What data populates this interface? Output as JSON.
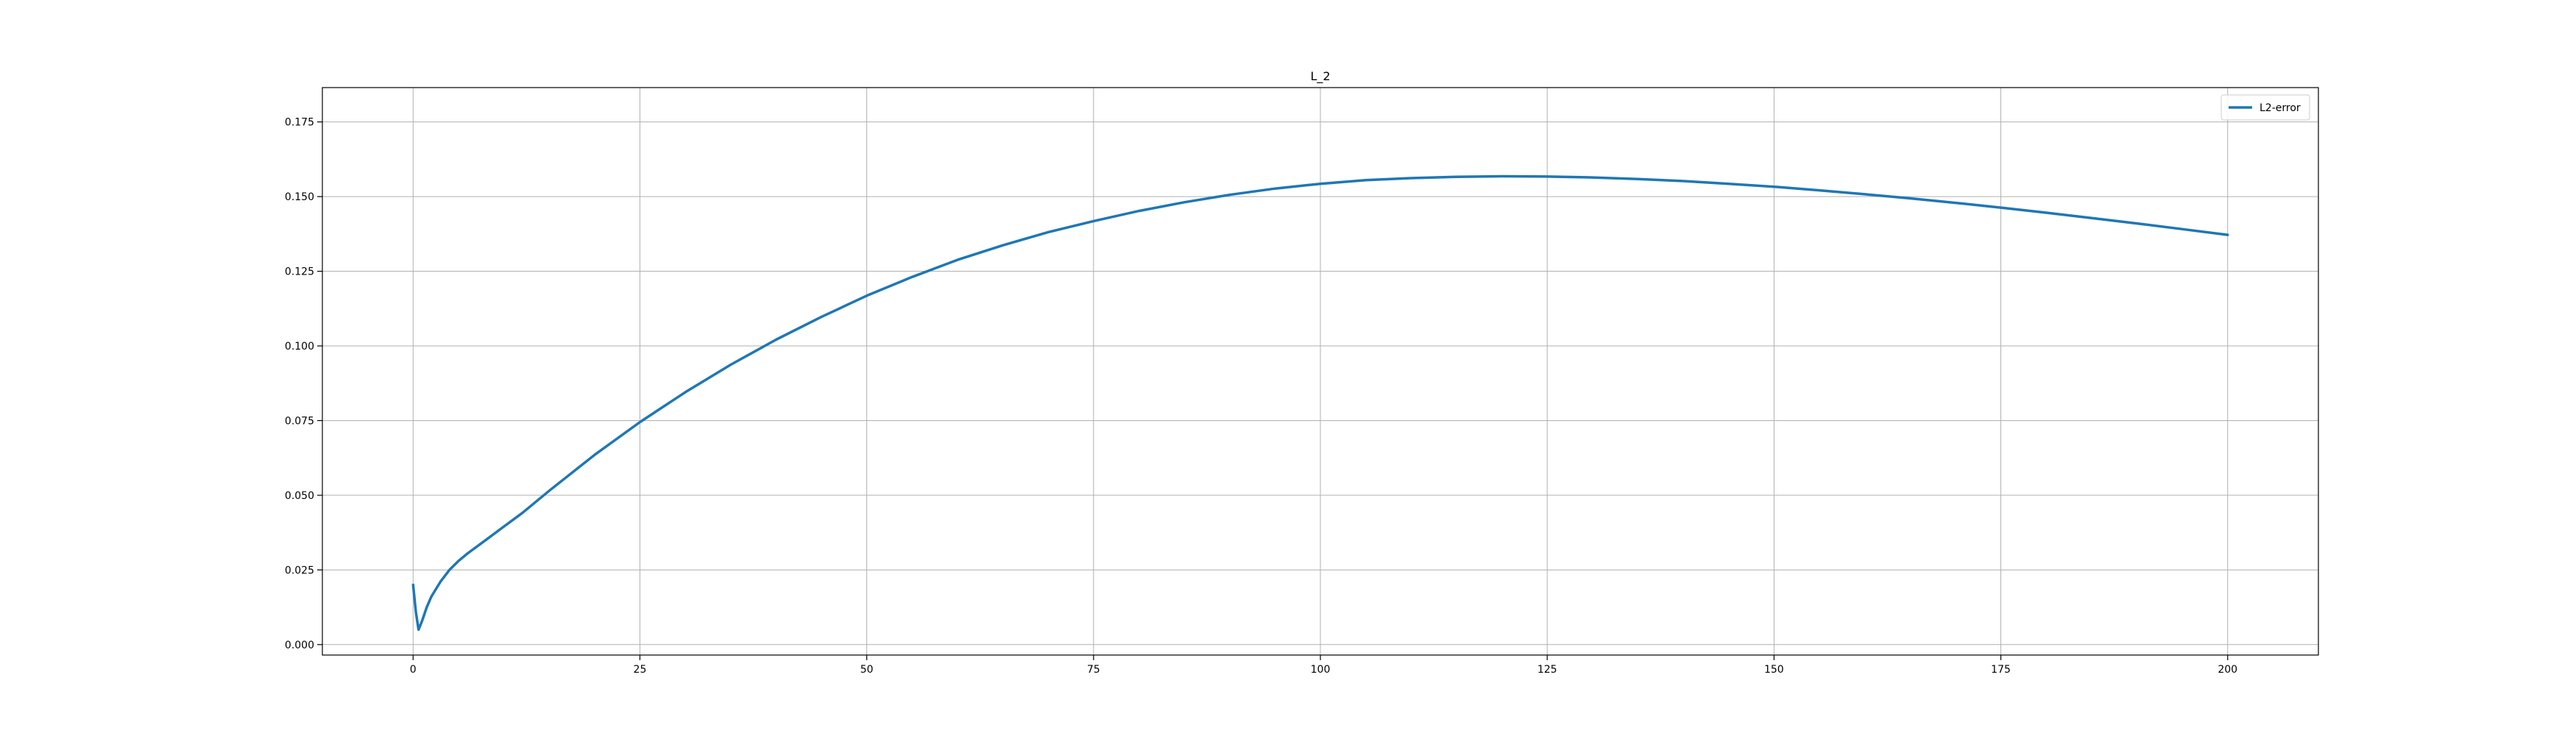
{
  "chart_data": {
    "type": "line",
    "title": "L_2",
    "xlabel": "",
    "ylabel": "",
    "xlim": [
      -10,
      210
    ],
    "ylim": [
      -0.0035,
      0.1865
    ],
    "xticks": [
      0,
      25,
      50,
      75,
      100,
      125,
      150,
      175,
      200
    ],
    "yticks": [
      0.0,
      0.025,
      0.05,
      0.075,
      0.1,
      0.125,
      0.15,
      0.175
    ],
    "ytick_labels": [
      "0.000",
      "0.025",
      "0.050",
      "0.075",
      "0.100",
      "0.125",
      "0.150",
      "0.175"
    ],
    "grid": true,
    "legend": {
      "position": "top-right",
      "entries": [
        "L2-error"
      ]
    },
    "series": [
      {
        "name": "L2-error",
        "color": "#1f77b4",
        "x": [
          0,
          0.3,
          0.6,
          1,
          1.5,
          2,
          3,
          4,
          5,
          6,
          8,
          10,
          12,
          15,
          20,
          25,
          30,
          35,
          40,
          45,
          50,
          55,
          60,
          65,
          70,
          75,
          80,
          85,
          90,
          95,
          100,
          105,
          110,
          115,
          120,
          125,
          130,
          135,
          140,
          145,
          150,
          155,
          160,
          165,
          170,
          175,
          180,
          185,
          190,
          195,
          200
        ],
        "y": [
          0.02,
          0.011,
          0.005,
          0.008,
          0.0125,
          0.016,
          0.021,
          0.025,
          0.028,
          0.0305,
          0.035,
          0.0395,
          0.044,
          0.0515,
          0.0635,
          0.0745,
          0.0845,
          0.0937,
          0.1021,
          0.1097,
          0.1168,
          0.1231,
          0.1288,
          0.1337,
          0.1381,
          0.1418,
          0.1452,
          0.1481,
          0.1506,
          0.1527,
          0.1543,
          0.1555,
          0.1562,
          0.1566,
          0.1568,
          0.1567,
          0.1564,
          0.1559,
          0.1552,
          0.1543,
          0.1533,
          0.1521,
          0.1508,
          0.1494,
          0.1479,
          0.1463,
          0.1446,
          0.1428,
          0.141,
          0.1391,
          0.1372
        ]
      }
    ]
  }
}
